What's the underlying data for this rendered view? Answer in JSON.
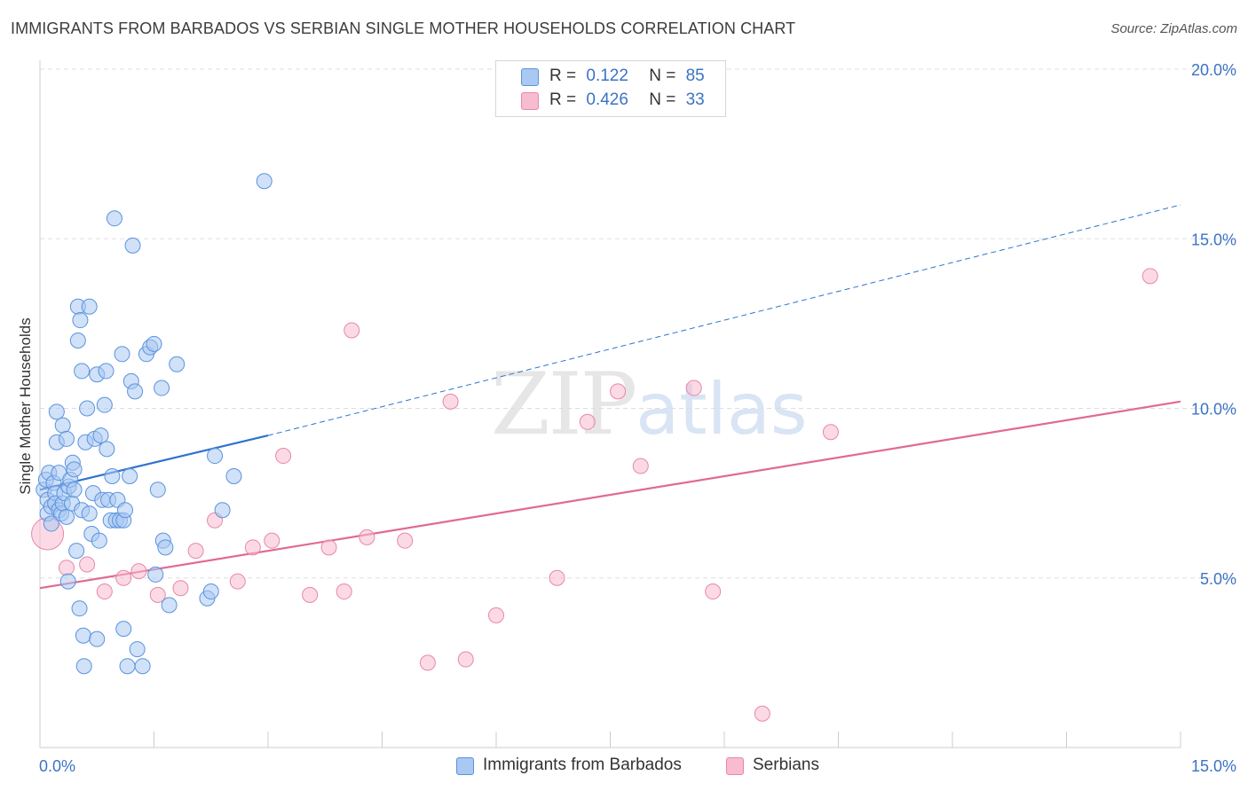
{
  "header": {
    "title": "IMMIGRANTS FROM BARBADOS VS SERBIAN SINGLE MOTHER HOUSEHOLDS CORRELATION CHART",
    "source": "Source: ZipAtlas.com"
  },
  "watermark": {
    "zip": "ZIP",
    "atlas": "atlas"
  },
  "legend_top": {
    "rows": [
      {
        "r_label": "R =",
        "r_value": "0.122",
        "n_label": "N =",
        "n_value": "85"
      },
      {
        "r_label": "R =",
        "r_value": "0.426",
        "n_label": "N =",
        "n_value": "33"
      }
    ]
  },
  "legend_bottom": {
    "items": [
      {
        "label": "Immigrants from Barbados"
      },
      {
        "label": "Serbians"
      }
    ]
  },
  "colors": {
    "blue_fill": "#a9c8f2",
    "blue_stroke": "#5a93de",
    "blue_line": "#2f72d0",
    "pink_fill": "#f7bcd0",
    "pink_stroke": "#e887a8",
    "pink_line": "#e06a94",
    "grid": "#dddddd",
    "tick_text": "#3b73c6"
  },
  "chart_data": {
    "type": "scatter",
    "title": "IMMIGRANTS FROM BARBADOS VS SERBIAN SINGLE MOTHER HOUSEHOLDS CORRELATION CHART",
    "xlabel": "",
    "ylabel": "Single Mother Households",
    "xlim": [
      0,
      15
    ],
    "ylim": [
      0,
      20
    ],
    "x_tick_labels": [
      "0.0%",
      "15.0%"
    ],
    "y_ticks": [
      5,
      10,
      15,
      20
    ],
    "y_tick_labels": [
      "5.0%",
      "10.0%",
      "15.0%",
      "20.0%"
    ],
    "grid": true,
    "legend_position": "top-center",
    "series": [
      {
        "name": "Immigrants from Barbados",
        "r": 0.122,
        "n": 85,
        "trend": {
          "x0": 0.0,
          "y0": 7.6,
          "x1": 3.0,
          "y1": 9.2,
          "extend_to_x": 15.0,
          "extend_to_y": 16.0
        },
        "points": [
          [
            0.05,
            7.6
          ],
          [
            0.08,
            7.9
          ],
          [
            0.1,
            7.3
          ],
          [
            0.1,
            6.9
          ],
          [
            0.12,
            8.1
          ],
          [
            0.15,
            7.1
          ],
          [
            0.15,
            6.6
          ],
          [
            0.18,
            7.8
          ],
          [
            0.2,
            7.5
          ],
          [
            0.2,
            7.2
          ],
          [
            0.22,
            9.0
          ],
          [
            0.22,
            9.9
          ],
          [
            0.25,
            8.1
          ],
          [
            0.25,
            7.0
          ],
          [
            0.28,
            6.9
          ],
          [
            0.3,
            7.2
          ],
          [
            0.3,
            9.5
          ],
          [
            0.32,
            7.5
          ],
          [
            0.35,
            9.1
          ],
          [
            0.35,
            6.8
          ],
          [
            0.37,
            4.9
          ],
          [
            0.38,
            7.7
          ],
          [
            0.4,
            7.9
          ],
          [
            0.42,
            7.2
          ],
          [
            0.43,
            8.4
          ],
          [
            0.45,
            7.6
          ],
          [
            0.45,
            8.2
          ],
          [
            0.48,
            5.8
          ],
          [
            0.5,
            12.0
          ],
          [
            0.5,
            13.0
          ],
          [
            0.52,
            4.1
          ],
          [
            0.53,
            12.6
          ],
          [
            0.55,
            11.1
          ],
          [
            0.55,
            7.0
          ],
          [
            0.57,
            3.3
          ],
          [
            0.58,
            2.4
          ],
          [
            0.6,
            9.0
          ],
          [
            0.62,
            10.0
          ],
          [
            0.65,
            6.9
          ],
          [
            0.65,
            13.0
          ],
          [
            0.68,
            6.3
          ],
          [
            0.7,
            7.5
          ],
          [
            0.72,
            9.1
          ],
          [
            0.75,
            11.0
          ],
          [
            0.75,
            3.2
          ],
          [
            0.78,
            6.1
          ],
          [
            0.8,
            9.2
          ],
          [
            0.82,
            7.3
          ],
          [
            0.85,
            10.1
          ],
          [
            0.87,
            11.1
          ],
          [
            0.88,
            8.8
          ],
          [
            0.9,
            7.3
          ],
          [
            0.93,
            6.7
          ],
          [
            0.95,
            8.0
          ],
          [
            0.98,
            15.6
          ],
          [
            1.0,
            6.7
          ],
          [
            1.02,
            7.3
          ],
          [
            1.05,
            6.7
          ],
          [
            1.08,
            11.6
          ],
          [
            1.1,
            3.5
          ],
          [
            1.1,
            6.7
          ],
          [
            1.12,
            7.0
          ],
          [
            1.15,
            2.4
          ],
          [
            1.18,
            8.0
          ],
          [
            1.2,
            10.8
          ],
          [
            1.22,
            14.8
          ],
          [
            1.25,
            10.5
          ],
          [
            1.28,
            2.9
          ],
          [
            1.35,
            2.4
          ],
          [
            1.4,
            11.6
          ],
          [
            1.45,
            11.8
          ],
          [
            1.5,
            11.9
          ],
          [
            1.52,
            5.1
          ],
          [
            1.55,
            7.6
          ],
          [
            1.6,
            10.6
          ],
          [
            1.62,
            6.1
          ],
          [
            1.65,
            5.9
          ],
          [
            1.7,
            4.2
          ],
          [
            1.8,
            11.3
          ],
          [
            2.2,
            4.4
          ],
          [
            2.25,
            4.6
          ],
          [
            2.3,
            8.6
          ],
          [
            2.4,
            7.0
          ],
          [
            2.55,
            8.0
          ],
          [
            2.95,
            16.7
          ]
        ]
      },
      {
        "name": "Serbians",
        "r": 0.426,
        "n": 33,
        "trend": {
          "x0": 0.0,
          "y0": 4.7,
          "x1": 15.0,
          "y1": 10.2
        },
        "points": [
          [
            0.1,
            6.3
          ],
          [
            0.35,
            5.3
          ],
          [
            0.62,
            5.4
          ],
          [
            0.85,
            4.6
          ],
          [
            1.1,
            5.0
          ],
          [
            1.3,
            5.2
          ],
          [
            1.55,
            4.5
          ],
          [
            1.85,
            4.7
          ],
          [
            2.05,
            5.8
          ],
          [
            2.3,
            6.7
          ],
          [
            2.6,
            4.9
          ],
          [
            2.8,
            5.9
          ],
          [
            3.05,
            6.1
          ],
          [
            3.2,
            8.6
          ],
          [
            3.55,
            4.5
          ],
          [
            3.8,
            5.9
          ],
          [
            4.0,
            4.6
          ],
          [
            4.1,
            12.3
          ],
          [
            4.3,
            6.2
          ],
          [
            4.8,
            6.1
          ],
          [
            5.1,
            2.5
          ],
          [
            5.4,
            10.2
          ],
          [
            5.6,
            2.6
          ],
          [
            6.0,
            3.9
          ],
          [
            6.8,
            5.0
          ],
          [
            7.2,
            9.6
          ],
          [
            7.6,
            10.5
          ],
          [
            7.9,
            8.3
          ],
          [
            8.6,
            10.6
          ],
          [
            8.85,
            4.6
          ],
          [
            9.5,
            1.0
          ],
          [
            10.4,
            9.3
          ],
          [
            14.6,
            13.9
          ]
        ]
      }
    ]
  }
}
